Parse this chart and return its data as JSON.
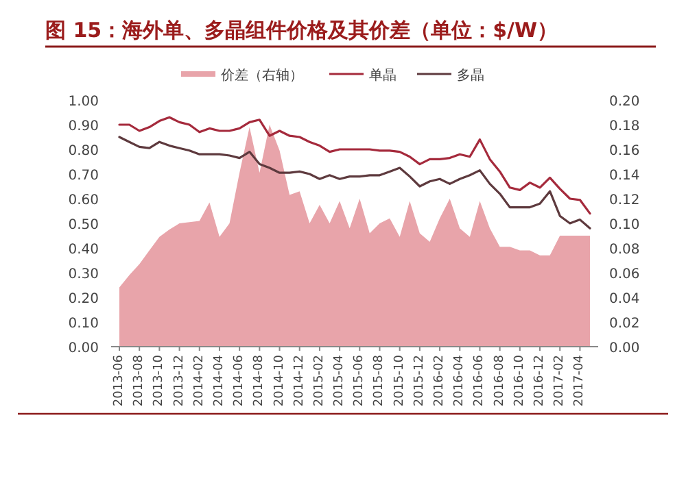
{
  "chart_data": {
    "type": "line",
    "title": "图 15：海外单、多晶组件价格及其价差（单位：$/W）",
    "categories": [
      "2013-06",
      null,
      "2013-08",
      null,
      "2013-10",
      null,
      "2013-12",
      null,
      "2014-02",
      null,
      "2014-04",
      null,
      "2014-06",
      null,
      "2014-08",
      null,
      "2014-10",
      null,
      "2014-12",
      null,
      "2015-02",
      null,
      "2015-04",
      null,
      "2015-06",
      null,
      "2015-08",
      null,
      "2015-10",
      null,
      "2015-12",
      null,
      "2016-02",
      null,
      "2016-04",
      null,
      "2016-06",
      null,
      "2016-08",
      null,
      "2016-10",
      null,
      "2016-12",
      null,
      "2017-02",
      null,
      "2017-04",
      null
    ],
    "series": [
      {
        "name": "价差（右轴）",
        "type": "area",
        "axis": "y2",
        "color": "#e8a4aa",
        "values": [
          0.048,
          0.058,
          0.067,
          0.078,
          0.089,
          0.095,
          0.1,
          0.101,
          0.102,
          0.117,
          0.089,
          0.1,
          0.141,
          0.178,
          0.141,
          0.18,
          0.159,
          0.123,
          0.126,
          0.1,
          0.115,
          0.1,
          0.118,
          0.096,
          0.12,
          0.092,
          0.1,
          0.104,
          0.089,
          0.118,
          0.092,
          0.085,
          0.104,
          0.12,
          0.096,
          0.089,
          0.118,
          0.096,
          0.081,
          0.081,
          0.078,
          0.078,
          0.074,
          0.074,
          0.09,
          0.09,
          0.09,
          0.09
        ]
      },
      {
        "name": "单晶",
        "color": "#a52a3c",
        "values": [
          0.9,
          0.9,
          0.875,
          0.89,
          0.915,
          0.93,
          0.91,
          0.9,
          0.87,
          0.885,
          0.875,
          0.875,
          0.885,
          0.91,
          0.92,
          0.855,
          0.875,
          0.855,
          0.85,
          0.83,
          0.815,
          0.79,
          0.8,
          0.8,
          0.8,
          0.8,
          0.795,
          0.795,
          0.79,
          0.77,
          0.74,
          0.76,
          0.76,
          0.765,
          0.78,
          0.77,
          0.84,
          0.76,
          0.71,
          0.645,
          0.635,
          0.665,
          0.645,
          0.685,
          0.64,
          0.6,
          0.595,
          0.54
        ]
      },
      {
        "name": "多晶",
        "color": "#5e3a3e",
        "values": [
          0.85,
          0.83,
          0.81,
          0.805,
          0.83,
          0.815,
          0.805,
          0.795,
          0.78,
          0.78,
          0.78,
          0.775,
          0.765,
          0.79,
          0.74,
          0.725,
          0.705,
          0.705,
          0.71,
          0.7,
          0.68,
          0.695,
          0.68,
          0.69,
          0.69,
          0.695,
          0.695,
          0.71,
          0.725,
          0.69,
          0.65,
          0.67,
          0.68,
          0.66,
          0.68,
          0.695,
          0.715,
          0.66,
          0.62,
          0.565,
          0.565,
          0.565,
          0.58,
          0.63,
          0.53,
          0.5,
          0.515,
          0.48
        ]
      }
    ],
    "ylim": [
      0,
      1
    ],
    "yticks": [
      {
        "value": 0,
        "label": "0.00"
      },
      {
        "value": 0.1,
        "label": "0.10"
      },
      {
        "value": 0.2,
        "label": "0.20"
      },
      {
        "value": 0.3,
        "label": "0.30"
      },
      {
        "value": 0.4,
        "label": "0.40"
      },
      {
        "value": 0.5,
        "label": "0.50"
      },
      {
        "value": 0.6,
        "label": "0.60"
      },
      {
        "value": 0.7,
        "label": "0.70"
      },
      {
        "value": 0.8,
        "label": "0.80"
      },
      {
        "value": 0.9,
        "label": "0.90"
      },
      {
        "value": 1,
        "label": "1.00"
      }
    ],
    "y2lim": [
      0,
      0.2
    ],
    "y2ticks": [
      {
        "value": 0,
        "label": "0.00"
      },
      {
        "value": 0.02,
        "label": "0.02"
      },
      {
        "value": 0.04,
        "label": "0.04"
      },
      {
        "value": 0.06,
        "label": "0.06"
      },
      {
        "value": 0.08,
        "label": "0.08"
      },
      {
        "value": 0.1,
        "label": "0.10"
      },
      {
        "value": 0.12,
        "label": "0.12"
      },
      {
        "value": 0.14,
        "label": "0.14"
      },
      {
        "value": 0.16,
        "label": "0.16"
      },
      {
        "value": 0.18,
        "label": "0.18"
      },
      {
        "value": 0.2,
        "label": "0.20"
      }
    ],
    "legend": "top",
    "grid": false,
    "marker": "none",
    "line_style": "solid"
  }
}
